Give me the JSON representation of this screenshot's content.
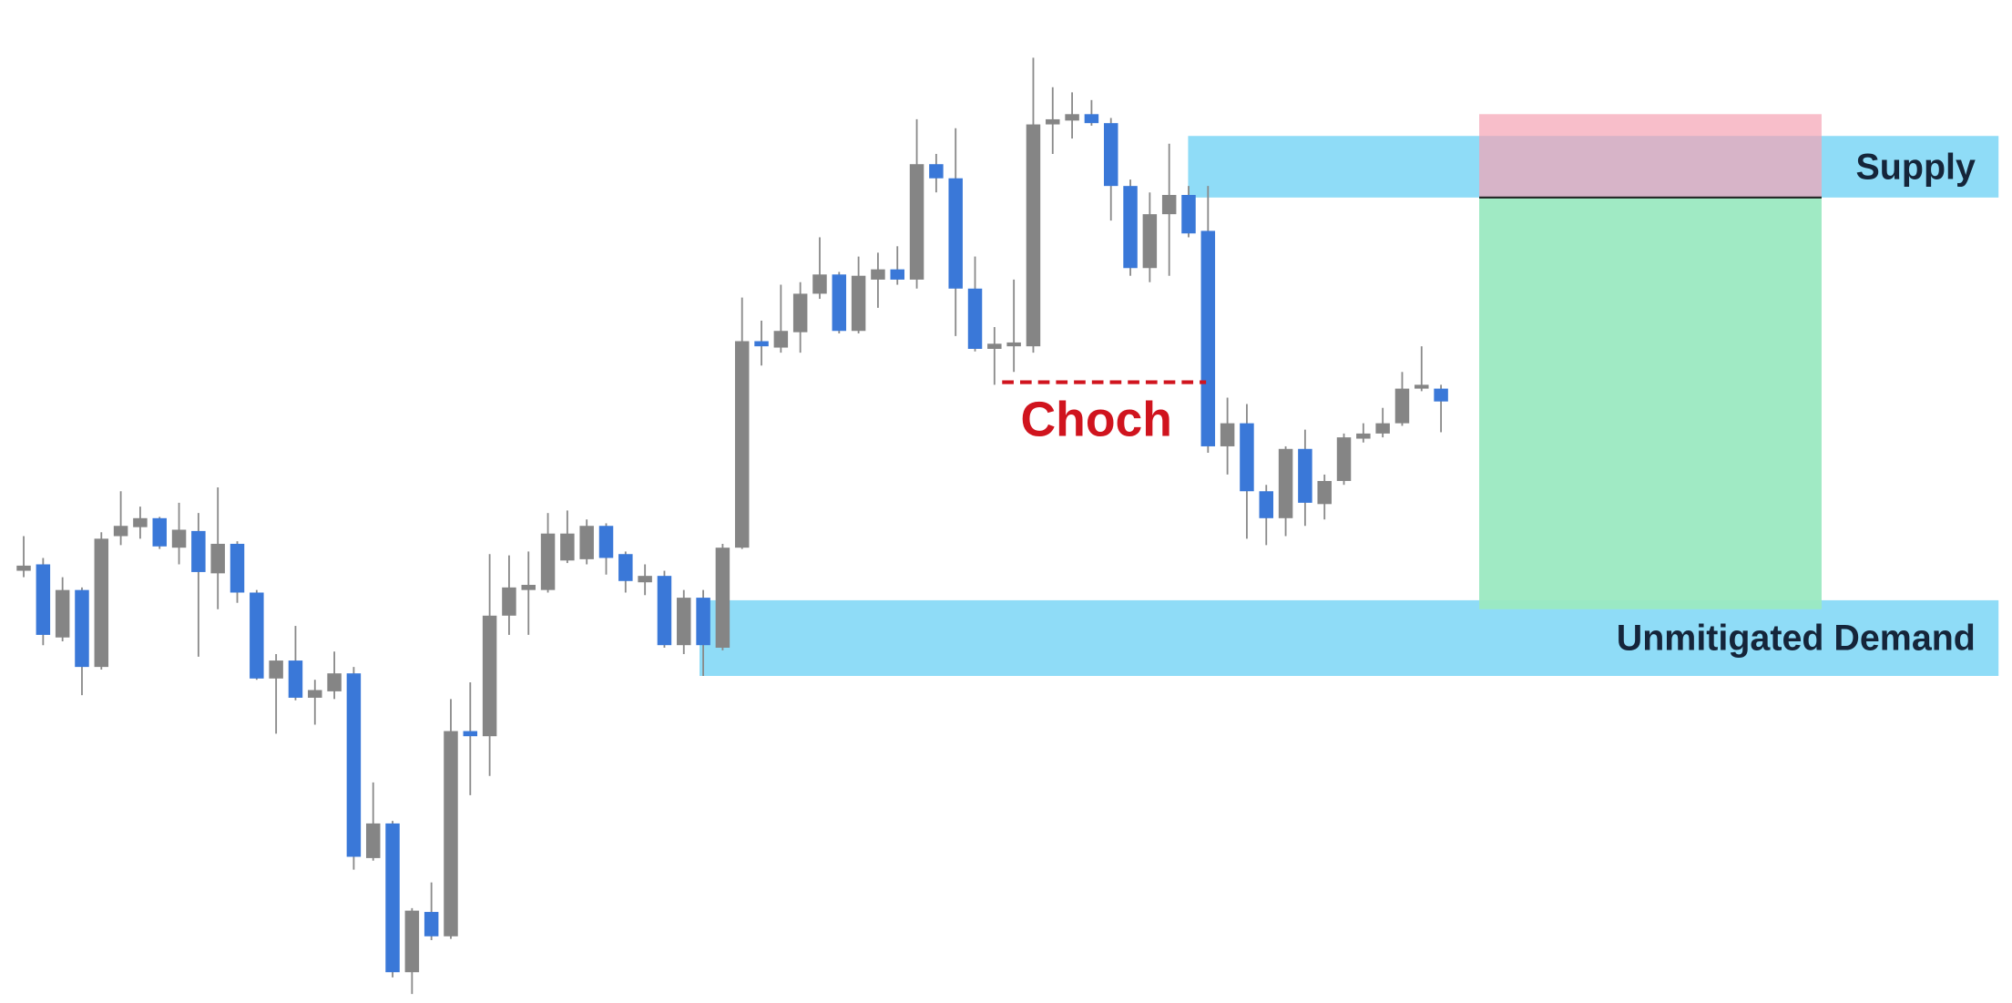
{
  "chart_data": {
    "type": "candlestick",
    "ylim": [
      0,
      782
    ],
    "up_color": "#858585",
    "down_color": "#3a78d8",
    "wick_color": "#8a8a8a",
    "open": [
      337,
      342,
      285,
      322,
      262,
      364,
      371,
      378,
      355,
      368,
      335,
      358,
      320,
      253,
      267,
      238,
      243,
      257,
      113,
      140,
      24,
      71,
      52,
      212,
      208,
      302,
      322,
      322,
      345,
      346,
      372,
      350,
      328,
      333,
      279,
      316,
      277,
      355,
      516,
      511,
      523,
      553,
      568,
      524,
      564,
      572,
      564,
      654,
      643,
      557,
      510,
      512,
      512,
      685,
      688,
      693,
      686,
      637,
      573,
      615,
      630,
      602,
      434,
      452,
      399,
      378,
      432,
      389,
      407,
      440,
      444,
      452,
      479,
      479
    ],
    "high": [
      364,
      347,
      332,
      324,
      367,
      399,
      387,
      379,
      390,
      382,
      402,
      360,
      322,
      272,
      294,
      252,
      274,
      262,
      172,
      142,
      74,
      94,
      237,
      250,
      350,
      349,
      352,
      382,
      384,
      377,
      374,
      352,
      342,
      337,
      322,
      322,
      358,
      550,
      532,
      560,
      562,
      597,
      570,
      582,
      585,
      590,
      689,
      662,
      682,
      582,
      527,
      564,
      737,
      714,
      710,
      704,
      690,
      642,
      632,
      670,
      637,
      637,
      472,
      467,
      404,
      434,
      447,
      412,
      444,
      452,
      464,
      492,
      512,
      482
    ],
    "low": [
      332,
      279,
      282,
      240,
      260,
      357,
      362,
      354,
      342,
      270,
      307,
      312,
      252,
      210,
      236,
      217,
      237,
      104,
      111,
      20,
      7,
      49,
      50,
      162,
      177,
      287,
      287,
      320,
      343,
      342,
      334,
      320,
      318,
      277,
      272,
      255,
      275,
      354,
      497,
      507,
      507,
      549,
      522,
      522,
      542,
      560,
      557,
      632,
      520,
      508,
      482,
      492,
      507,
      662,
      674,
      684,
      610,
      567,
      562,
      567,
      597,
      429,
      412,
      362,
      357,
      364,
      372,
      377,
      404,
      437,
      441,
      450,
      477,
      445
    ],
    "close": [
      341,
      287,
      322,
      262,
      362,
      372,
      378,
      356,
      369,
      336,
      358,
      320,
      253,
      267,
      238,
      244,
      257,
      114,
      140,
      24,
      72,
      52,
      212,
      208,
      302,
      324,
      326,
      366,
      366,
      372,
      347,
      329,
      333,
      279,
      316,
      279,
      355,
      516,
      512,
      524,
      553,
      568,
      524,
      567,
      572,
      564,
      654,
      643,
      557,
      510,
      514,
      515,
      685,
      689,
      693,
      686,
      637,
      573,
      615,
      630,
      600,
      434,
      452,
      399,
      378,
      432,
      390,
      407,
      441,
      444,
      452,
      479,
      482,
      469
    ],
    "zones": [
      {
        "label": "Supply",
        "top": 676,
        "bottom": 628,
        "color": "#8fdcf7"
      },
      {
        "label": "Unmitigated Demand",
        "top": 314,
        "bottom": 255,
        "color": "#8fdcf7"
      }
    ],
    "position": {
      "stop": 693,
      "entry": 628,
      "target": 307,
      "stop_color": "#f5a3b3",
      "target_color": "#9be9c1"
    },
    "choch": {
      "label": "Choch",
      "value": 484,
      "color": "#d0141e"
    }
  }
}
